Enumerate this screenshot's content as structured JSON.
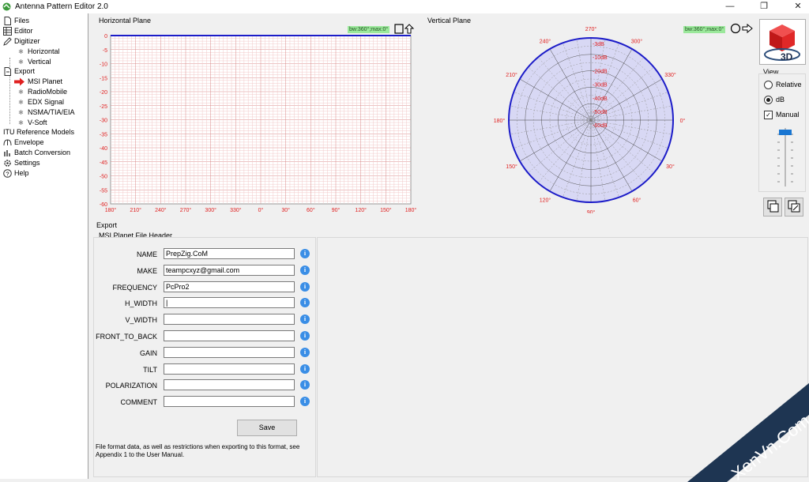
{
  "window": {
    "title": "Antenna Pattern Editor 2.0",
    "buttons": {
      "minimize": "—",
      "restore": "❐",
      "close": "✕"
    }
  },
  "sidebar": {
    "items": [
      {
        "label": "Files",
        "icon": "document-icon"
      },
      {
        "label": "Editor",
        "icon": "grid-icon"
      },
      {
        "label": "Digitizer",
        "icon": "pencil-icon"
      },
      {
        "label": "Horizontal",
        "icon": "bullet"
      },
      {
        "label": "Vertical",
        "icon": "bullet"
      },
      {
        "label": "Export",
        "icon": "export-icon"
      },
      {
        "label": "MSI Planet",
        "icon": "arrow-right-icon"
      },
      {
        "label": "RadioMobile",
        "icon": "bullet"
      },
      {
        "label": "EDX Signal",
        "icon": "bullet"
      },
      {
        "label": "NSMA/TIA/EIA",
        "icon": "bullet"
      },
      {
        "label": "V-Soft",
        "icon": "bullet"
      },
      {
        "label": "ITU Reference Models",
        "icon": "itu-icon"
      },
      {
        "label": "Envelope",
        "icon": "envelope-icon"
      },
      {
        "label": "Batch Conversion",
        "icon": "batch-icon"
      },
      {
        "label": "Settings",
        "icon": "gear-icon"
      },
      {
        "label": "Help",
        "icon": "help-icon"
      }
    ]
  },
  "horizontal_plane": {
    "title": "Horizontal Plane",
    "badge": "bw:360°;max:0°",
    "y_ticks": [
      "0",
      "-5",
      "-10",
      "-15",
      "-20",
      "-25",
      "-30",
      "-35",
      "-40",
      "-45",
      "-50",
      "-55",
      "-60"
    ],
    "x_ticks": [
      "180°",
      "210°",
      "240°",
      "270°",
      "300°",
      "330°",
      "0°",
      "30°",
      "60°",
      "90°",
      "120°",
      "150°",
      "180°"
    ]
  },
  "vertical_plane": {
    "title": "Vertical Plane",
    "badge": "bw:360°;max:0°",
    "angle_labels": [
      "0°",
      "30°",
      "60°",
      "90°",
      "120°",
      "150°",
      "180°",
      "210°",
      "240°",
      "270°",
      "300°",
      "330°"
    ],
    "db_labels": [
      "-3dB",
      "-10dB",
      "-20dB",
      "-30dB",
      "-40dB",
      "-50dB",
      "-60dB"
    ]
  },
  "view_panel": {
    "button_3d": "3D",
    "group_label": "View",
    "options": [
      {
        "label": "Relative",
        "selected": false
      },
      {
        "label": "dB",
        "selected": true
      }
    ],
    "manual": {
      "label": "Manual",
      "checked": true
    }
  },
  "export": {
    "section_label": "Export",
    "group_label": "MSI Planet File Header",
    "fields": [
      {
        "label": "NAME",
        "value": "PrepZig.CoM"
      },
      {
        "label": "MAKE",
        "value": "teampcxyz@gmail.com"
      },
      {
        "label": "FREQUENCY",
        "value": "PcPro2"
      },
      {
        "label": "H_WIDTH",
        "value": "|"
      },
      {
        "label": "V_WIDTH",
        "value": ""
      },
      {
        "label": "FRONT_TO_BACK",
        "value": ""
      },
      {
        "label": "GAIN",
        "value": ""
      },
      {
        "label": "TILT",
        "value": ""
      },
      {
        "label": "POLARIZATION",
        "value": ""
      },
      {
        "label": "COMMENT",
        "value": ""
      }
    ],
    "info_glyph": "i",
    "save_label": "Save",
    "footnote": "File format data, as well as restrictions when exporting to this format, see Appendix 1 to the User Manual."
  },
  "watermark": {
    "text": "XenVn.Com"
  },
  "colors": {
    "grid_red": "#e8a0a0",
    "pattern_blue": "#1c1cc8",
    "polar_fill": "#d8d8f4",
    "badge_green": "#9be89b",
    "info_blue": "#3a8ee6",
    "accent_red": "#e02020"
  }
}
